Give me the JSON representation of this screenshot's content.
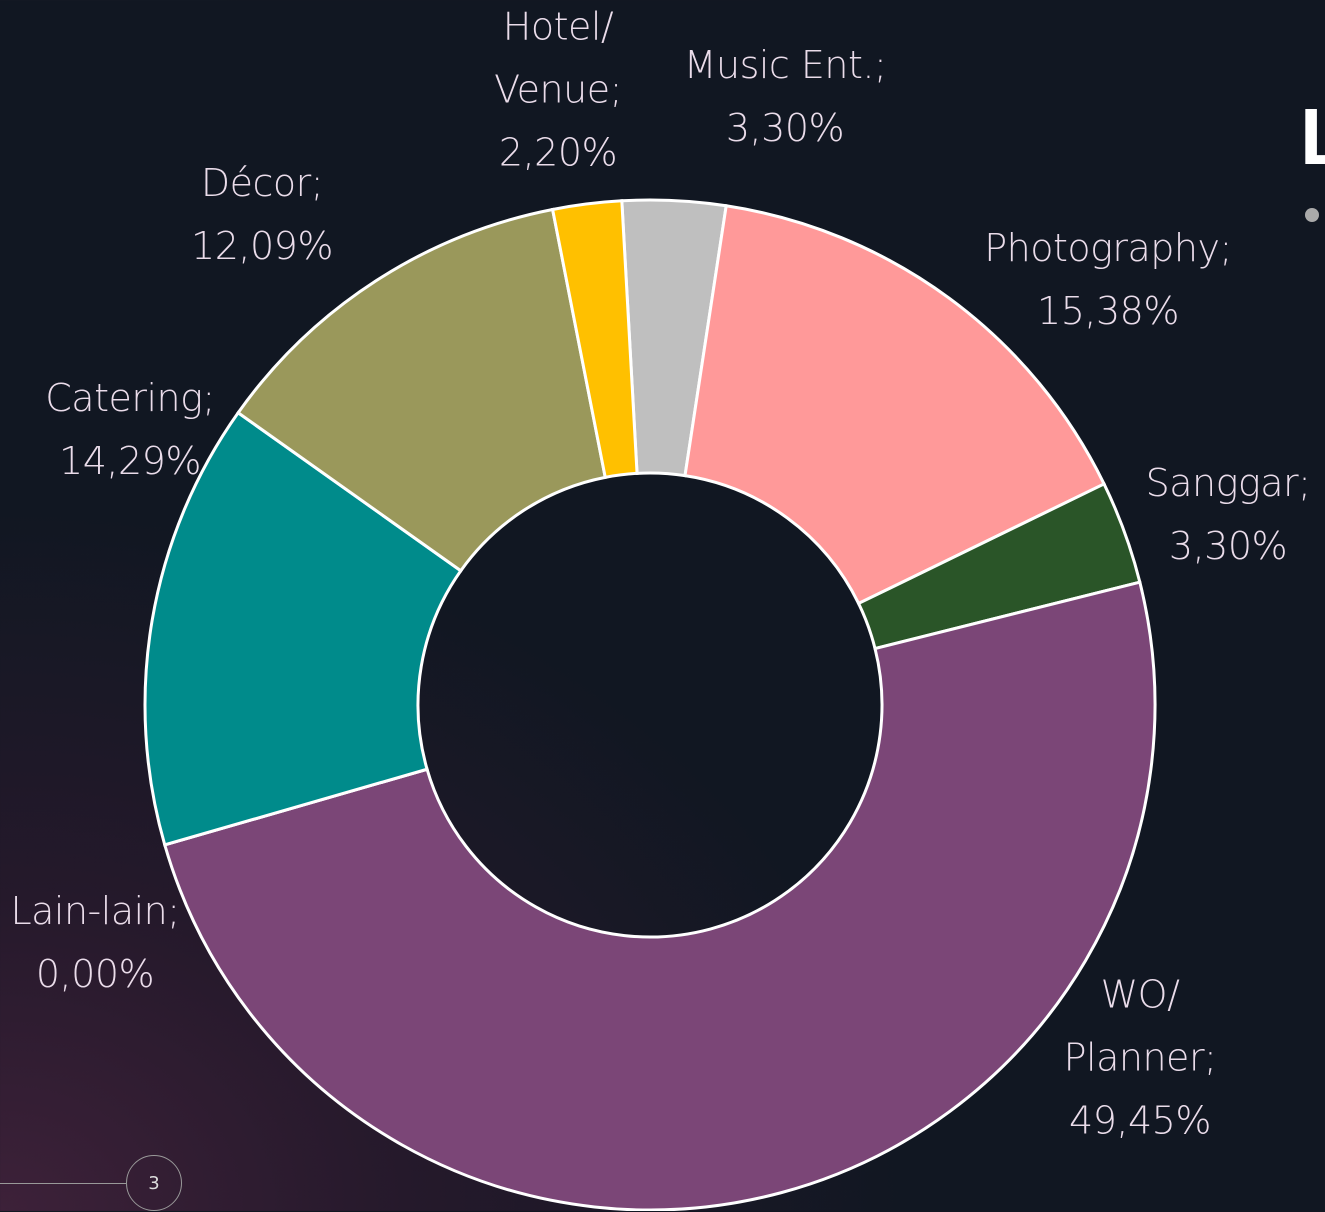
{
  "slide": {
    "title": "L",
    "page_number": "3"
  },
  "chart_data": {
    "type": "donut",
    "categories": [
      "Music Ent.;",
      "Photography;",
      "Sanggar;",
      "WO/\nPlanner;",
      "Lain-lain;",
      "Catering;",
      "Décor;",
      "Hotel/\nVenue;"
    ],
    "values": [
      3.3,
      15.38,
      3.3,
      49.45,
      0,
      14.29,
      12.09,
      2.2
    ],
    "value_labels": [
      "3,30%",
      "15,38%",
      "3,30%",
      "49,45%",
      "0,00%",
      "14,29%",
      "12,09%",
      "2,20%"
    ],
    "colors": [
      "#bfbfbf",
      "#ff9999",
      "#2a5528",
      "#7b4677",
      "#7f7f7f",
      "#008b8b",
      "#9a985b",
      "#ffc000"
    ]
  }
}
